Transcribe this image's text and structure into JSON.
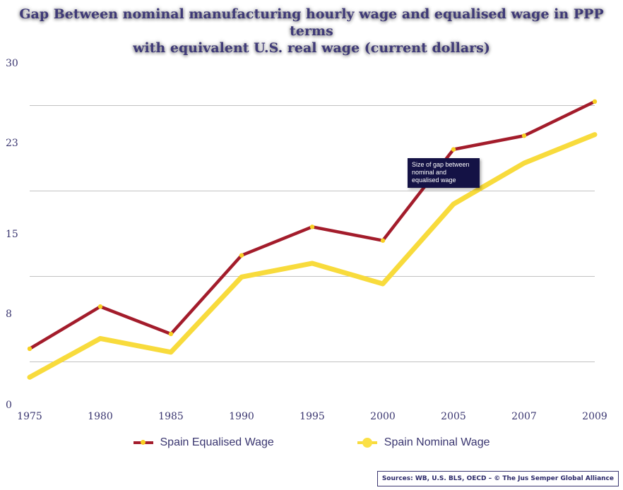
{
  "title_line1": "Gap Between nominal manufacturing hourly wage and equalised wage in PPP terms",
  "title_line2": "with equivalent U.S. real wage (current dollars)",
  "colors": {
    "equalised": "#a31c2b",
    "nominal": "#f8db3c",
    "equalised_dot": "#f7cf22",
    "nominal_dot": "#fbe046",
    "axis_text": "#3a3670",
    "grid": "#c2c2c2"
  },
  "chart_data": {
    "type": "line",
    "title": "Gap Between nominal manufacturing hourly wage and equalised wage in PPP terms with equivalent U.S. real wage (current dollars)",
    "xlabel": "",
    "ylabel": "",
    "categories": [
      "1975",
      "1980",
      "1985",
      "1990",
      "1995",
      "2000",
      "2005",
      "2007",
      "2009"
    ],
    "ylim": [
      0,
      30
    ],
    "yticks": [
      0,
      8,
      15,
      23,
      30
    ],
    "grid": true,
    "legend_position": "bottom",
    "series": [
      {
        "name": "Spain Equalised Wage",
        "values": [
          4.9,
          8.6,
          6.2,
          13.1,
          15.6,
          14.4,
          22.4,
          23.6,
          26.6
        ]
      },
      {
        "name": "Spain Nominal Wage",
        "values": [
          2.4,
          5.8,
          4.6,
          11.2,
          12.4,
          10.6,
          17.6,
          21.2,
          23.7
        ]
      }
    ],
    "annotation": "Size of gap between nominal and equalised wage"
  },
  "sources": "Sources: WB, U.S. BLS, OECD – © The Jus Semper Global Alliance"
}
